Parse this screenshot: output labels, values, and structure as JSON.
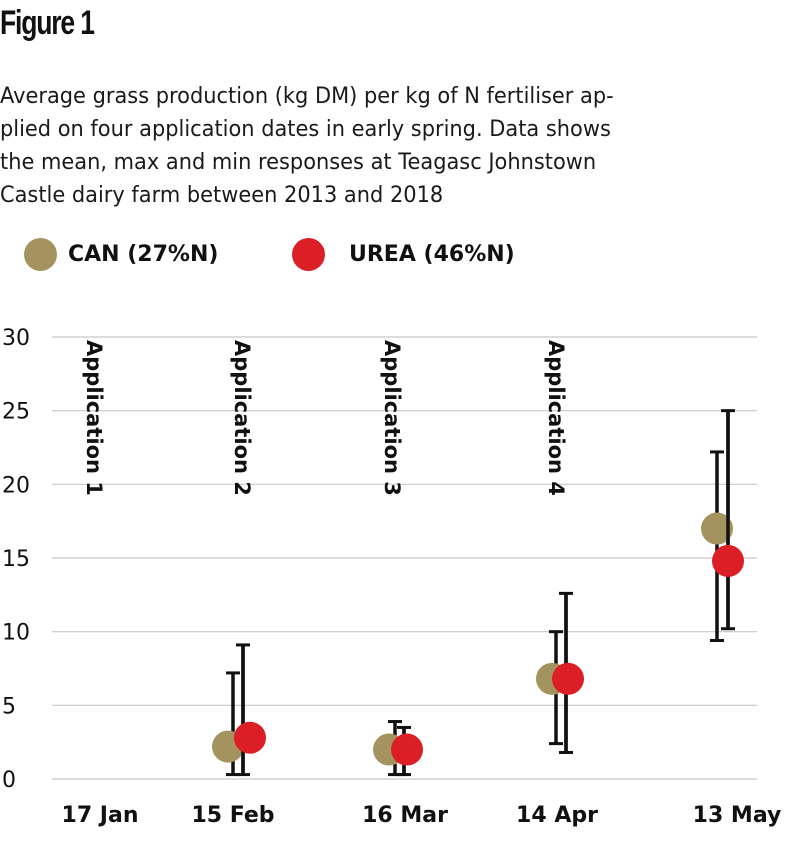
{
  "figure": {
    "title": "Figure 1",
    "caption_lines": [
      "Average grass production (kg DM) per kg of N fertiliser ap-",
      "plied on four application dates in early spring. Data shows",
      "the mean, max and min responses at Teagasc Johnstown",
      "Castle dairy farm between 2013 and 2018"
    ]
  },
  "legend": [
    {
      "label": "CAN (27%N)",
      "color": "#a4935f"
    },
    {
      "label": "UREA (46%N)",
      "color": "#dc1f26"
    }
  ],
  "chart_data": {
    "type": "scatter",
    "title": "Figure 1",
    "xlabel": "",
    "ylabel": "",
    "ylim": [
      0,
      30
    ],
    "yticks": [
      "0",
      "5",
      "10",
      "15",
      "20",
      "25",
      "30"
    ],
    "ytick_values": [
      0,
      5,
      10,
      15,
      20,
      25,
      30
    ],
    "grid": true,
    "legend_position": "top-left",
    "categories": [
      "17 Jan",
      "15 Feb",
      "16 Mar",
      "14 Apr",
      "13 May"
    ],
    "annotations": [
      "Application 1",
      "Application 2",
      "Application 3",
      "Application 4"
    ],
    "series": [
      {
        "name": "CAN (27%N)",
        "color": "#a4935f",
        "mean": [
          null,
          2.2,
          2.0,
          6.8,
          17.0
        ],
        "max": [
          null,
          7.2,
          3.9,
          10.0,
          22.2
        ],
        "min": [
          null,
          0.3,
          0.3,
          2.4,
          9.4
        ]
      },
      {
        "name": "UREA (46%N)",
        "color": "#dc1f26",
        "mean": [
          null,
          2.8,
          2.0,
          6.8,
          14.8
        ],
        "max": [
          null,
          9.1,
          3.5,
          12.6,
          25.0
        ],
        "min": [
          null,
          0.3,
          0.3,
          1.8,
          10.2
        ]
      }
    ]
  }
}
